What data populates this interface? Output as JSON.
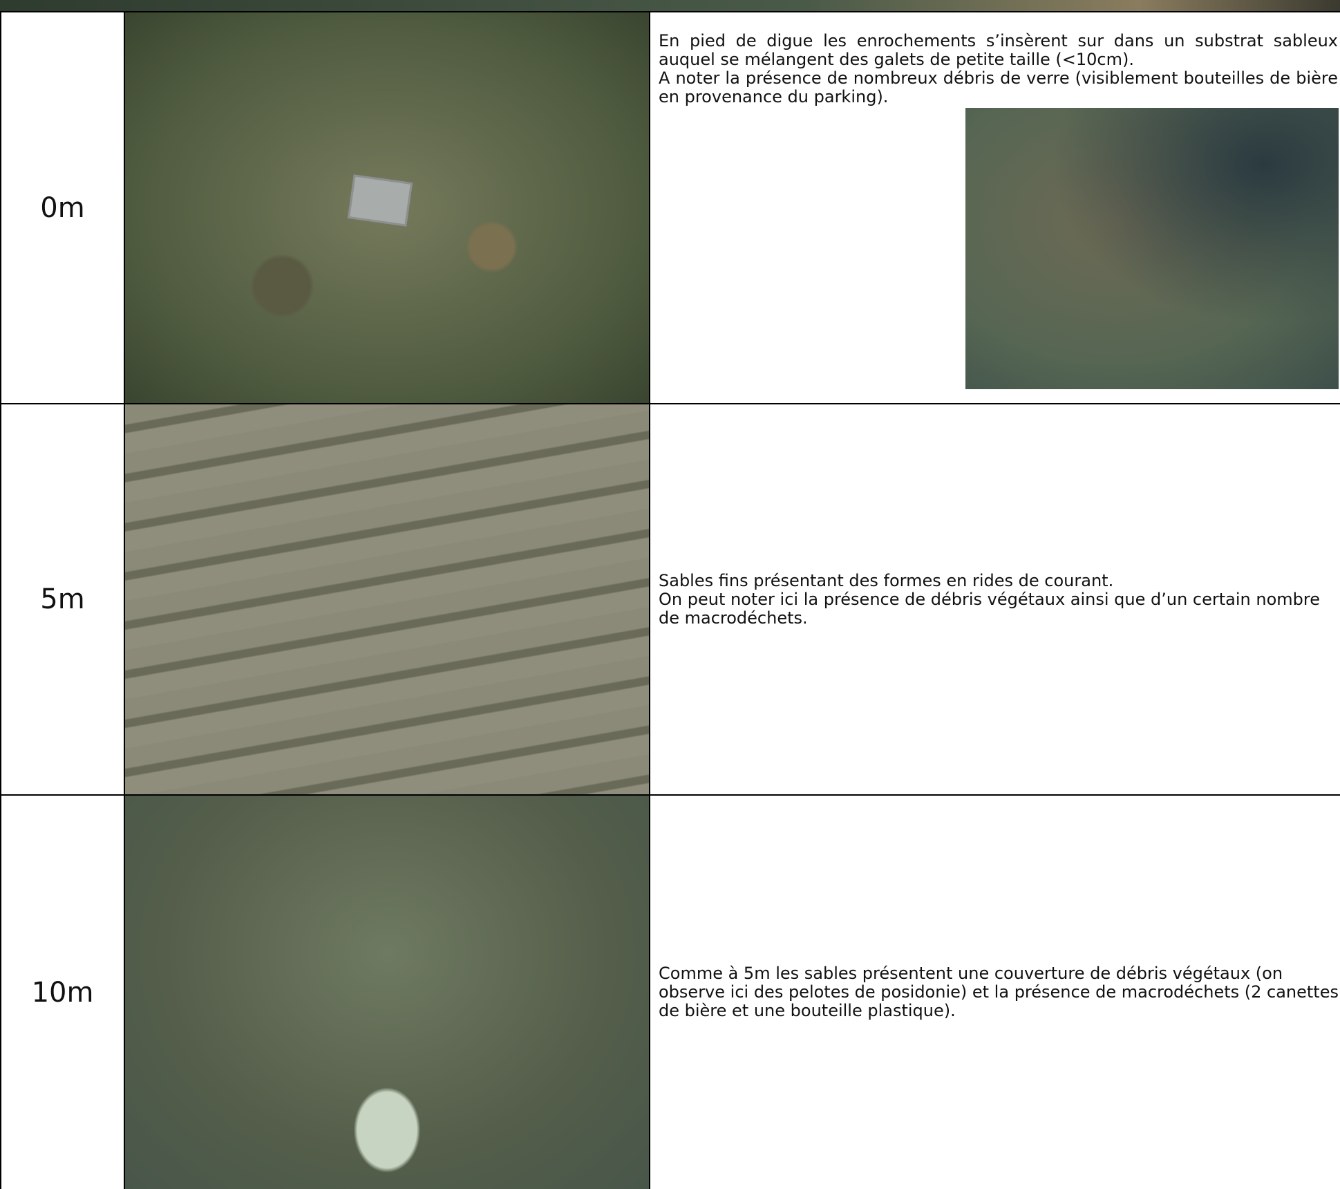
{
  "table": {
    "rows": [
      {
        "depth": "0m",
        "paragraphs": [
          "En pied de digue les enrochements s’insèrent sur dans un substrat sableux auquel se mélangent des galets de petite taille (<10cm).",
          "A noter la présence de nombreux débris de verre (visiblement bouteilles de bière en provenance du parking)."
        ]
      },
      {
        "depth": "5m",
        "paragraphs": [
          "Sables fins présentant des formes en rides de courant.",
          "On peut noter ici la présence de débris végétaux ainsi que d’un certain nombre de macrodéchets."
        ]
      },
      {
        "depth": "10m",
        "paragraphs": [
          "Comme à 5m  les sables présentent une couverture de débris végétaux (on observe ici des pelotes de posidonie) et la présence de macrodéchets (2 canettes de bière et une bouteille plastique)."
        ]
      }
    ]
  }
}
